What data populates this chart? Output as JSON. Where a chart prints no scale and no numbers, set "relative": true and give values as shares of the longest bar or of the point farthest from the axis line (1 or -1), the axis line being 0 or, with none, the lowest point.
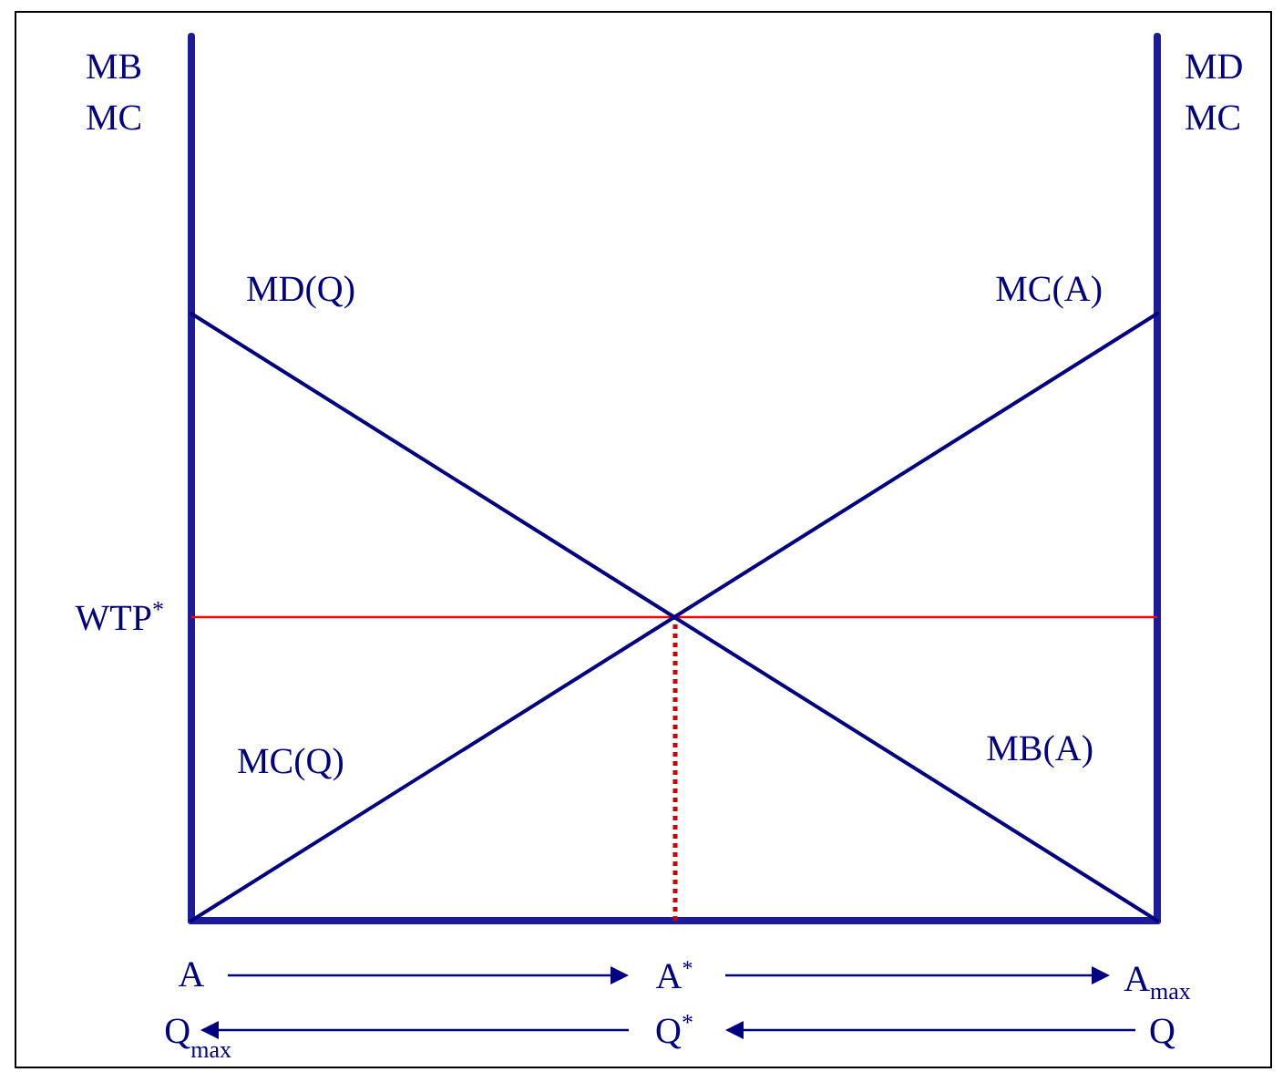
{
  "chart_data": {
    "type": "line",
    "relative": true,
    "categories": [
      "A",
      "A$^{*}$",
      "A$_{max}$"
    ],
    "ylabel": "MB\nMC",
    "y2label": "MD\nMC",
    "series": [
      {
        "name": "MD(Q)",
        "color": "#000080",
        "values": [
          1,
          0.5,
          0
        ]
      },
      {
        "name": "MC(A)",
        "color": "#000080",
        "values": [
          0,
          0.5,
          1
        ]
      }
    ],
    "annotations": [
      "MC(Q)",
      "MB(A)",
      "Q$_{max}$",
      "Q$^{*}$",
      "Q"
    ],
    "ref_lines": [
      {
        "axis": "y",
        "value": 0.5,
        "label": "WTP$^{*}$",
        "color": "#ff0000",
        "line_style": "solid"
      },
      {
        "axis": "x",
        "value": "A$^{*}$",
        "color": "#cc0000",
        "line_style": "dotted"
      }
    ],
    "marker": "none",
    "line_style": "solid",
    "grid": false,
    "legend": false
  }
}
